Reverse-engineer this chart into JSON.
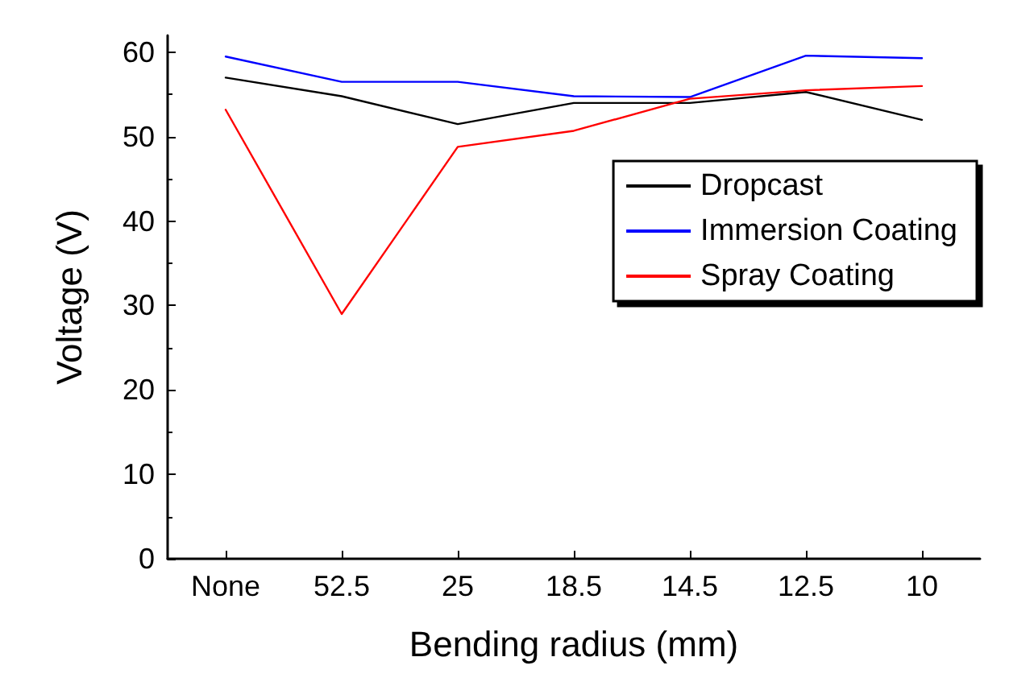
{
  "chart_data": {
    "type": "line",
    "xlabel": "Bending radius (mm)",
    "ylabel": "Voltage (V)",
    "categories": [
      "None",
      "52.5",
      "25",
      "18.5",
      "14.5",
      "12.5",
      "10"
    ],
    "series": [
      {
        "name": "Dropcast",
        "color": "#000000",
        "values": [
          57.0,
          54.8,
          51.5,
          54.0,
          54.0,
          55.3,
          52.0
        ]
      },
      {
        "name": "Immersion Coating",
        "color": "#0000ff",
        "values": [
          59.5,
          56.5,
          56.5,
          54.8,
          54.7,
          59.6,
          59.3
        ]
      },
      {
        "name": "Spray Coating",
        "color": "#ff0000",
        "values": [
          53.2,
          29.0,
          48.8,
          50.7,
          54.5,
          55.5,
          56.0
        ]
      }
    ],
    "ylim": [
      0,
      62
    ],
    "yticks": [
      0,
      10,
      20,
      30,
      40,
      50,
      60
    ],
    "grid": false,
    "legend": "top right",
    "marker": "none"
  }
}
